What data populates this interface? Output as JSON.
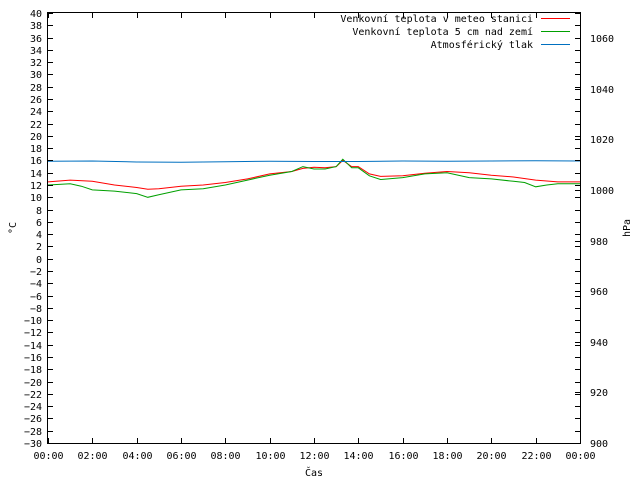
{
  "chart_data": {
    "type": "line",
    "xlabel": "Čas",
    "ylabel_left": "°C",
    "ylabel_right": "hPa",
    "x_ticks": [
      "00:00",
      "02:00",
      "04:00",
      "06:00",
      "08:00",
      "10:00",
      "12:00",
      "14:00",
      "16:00",
      "18:00",
      "20:00",
      "22:00",
      "00:00"
    ],
    "xlim": [
      0,
      24
    ],
    "ylim_left": [
      -30,
      40
    ],
    "ylim_right": [
      900,
      1070
    ],
    "y_ticks_left": [
      40,
      38,
      36,
      34,
      32,
      30,
      28,
      26,
      24,
      22,
      20,
      18,
      16,
      14,
      12,
      10,
      8,
      6,
      4,
      2,
      0,
      -2,
      -4,
      -6,
      -8,
      -10,
      -12,
      -14,
      -16,
      -18,
      -20,
      -22,
      -24,
      -26,
      -28,
      -30
    ],
    "y_ticks_right": [
      1060,
      1040,
      1020,
      1000,
      980,
      960,
      940,
      920,
      900
    ],
    "grid": false,
    "legend_position": "top-right",
    "series": [
      {
        "name": "Venkovní teplota v meteo stanici",
        "color": "#ff0000",
        "axis": "left",
        "x": [
          0,
          1,
          2,
          3,
          4,
          4.5,
          5,
          6,
          7,
          8,
          9,
          10,
          11,
          11.5,
          12,
          12.5,
          13,
          13.3,
          13.7,
          14,
          14.5,
          15,
          16,
          17,
          18,
          19,
          20,
          21,
          22,
          23,
          24
        ],
        "y": [
          12.5,
          12.8,
          12.6,
          12.0,
          11.6,
          11.3,
          11.4,
          11.8,
          12.0,
          12.4,
          13.0,
          13.8,
          14.2,
          14.7,
          14.9,
          14.8,
          15.0,
          16.0,
          15.0,
          15.0,
          13.8,
          13.4,
          13.5,
          13.9,
          14.2,
          14.0,
          13.6,
          13.3,
          12.8,
          12.5,
          12.5
        ]
      },
      {
        "name": "Venkovní teplota 5 cm nad zemí",
        "color": "#00a000",
        "axis": "left",
        "x": [
          0,
          1,
          1.5,
          2,
          3,
          4,
          4.5,
          5,
          6,
          7,
          8,
          9,
          10,
          11,
          11.5,
          12,
          12.5,
          13,
          13.3,
          13.7,
          14,
          14.5,
          15,
          16,
          17,
          18,
          19,
          20,
          21,
          21.5,
          22,
          22.5,
          23,
          24
        ],
        "y": [
          12.0,
          12.2,
          11.8,
          11.2,
          11.0,
          10.6,
          10.0,
          10.4,
          11.2,
          11.4,
          12.0,
          12.8,
          13.6,
          14.2,
          15.0,
          14.6,
          14.6,
          15.0,
          16.2,
          14.8,
          14.8,
          13.5,
          12.9,
          13.2,
          13.8,
          14.0,
          13.2,
          13.0,
          12.6,
          12.4,
          11.7,
          12.0,
          12.2,
          12.2
        ]
      },
      {
        "name": "Atmosférický tlak",
        "color": "#0070c0",
        "axis": "right",
        "x": [
          0,
          2,
          4,
          6,
          8,
          10,
          12,
          14,
          16,
          18,
          20,
          22,
          24
        ],
        "y": [
          1011.4,
          1011.5,
          1011.1,
          1011.0,
          1011.2,
          1011.4,
          1011.3,
          1011.3,
          1011.5,
          1011.4,
          1011.5,
          1011.6,
          1011.5
        ]
      }
    ]
  }
}
